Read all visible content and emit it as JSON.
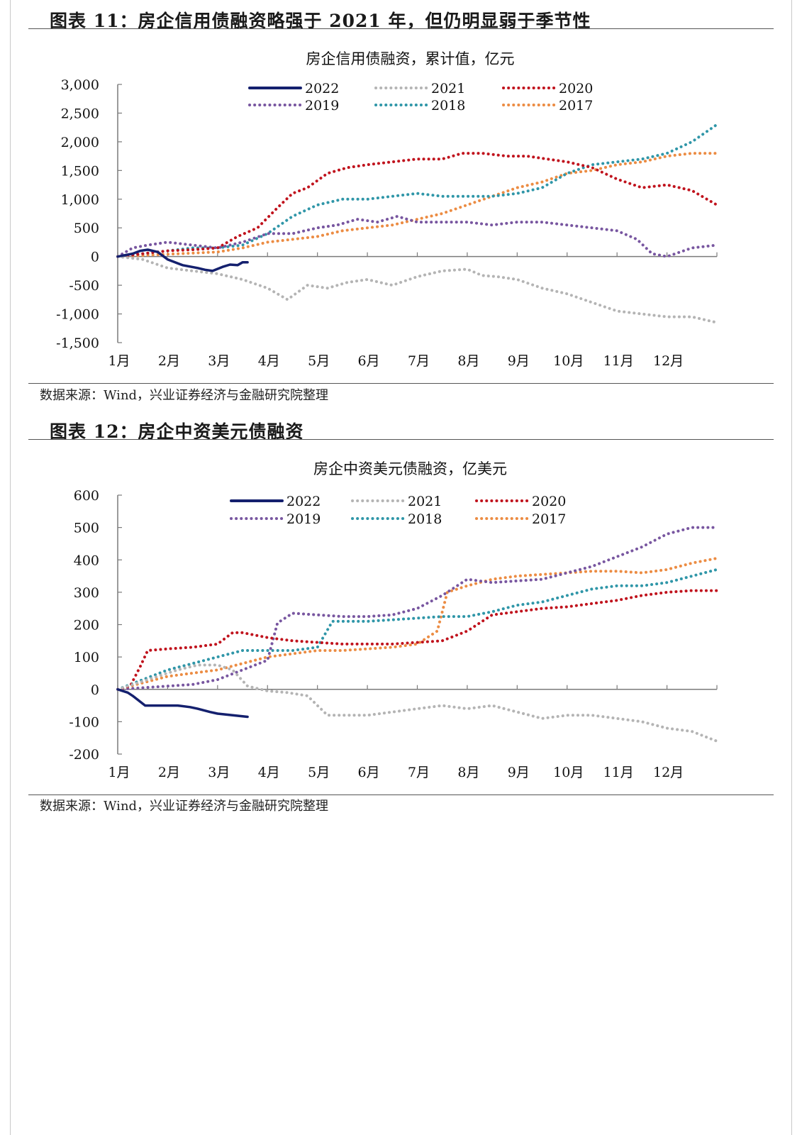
{
  "figures": [
    {
      "caption": "图表 11：房企信用债融资略强于 2021 年，但仍明显弱于季节性",
      "source": "数据来源：Wind，兴业证券经济与金融研究院整理",
      "chart_data": {
        "type": "line",
        "title": "房企信用债融资，累计值，亿元",
        "xlabel": "",
        "ylabel": "",
        "x_tick_labels": [
          "1月",
          "2月",
          "3月",
          "4月",
          "5月",
          "6月",
          "7月",
          "8月",
          "9月",
          "10月",
          "11月",
          "12月"
        ],
        "y_tick_labels": [
          "3,000",
          "2,500",
          "2,000",
          "1,500",
          "1,000",
          "500",
          "0",
          "-500",
          "-1,000",
          "-1,500"
        ],
        "ylim": [
          -1500,
          3000
        ],
        "y_ticks": [
          3000,
          2500,
          2000,
          1500,
          1000,
          500,
          0,
          -500,
          -1000,
          -1500
        ],
        "xlim": [
          0,
          12
        ],
        "grid": false,
        "legend_position": "top",
        "series": [
          {
            "name": "2022",
            "color": "#14206e",
            "style": "solid",
            "x": [
              0,
              0.3,
              0.45,
              0.6,
              0.8,
              1.0,
              1.3,
              1.6,
              1.75,
              1.9,
              2.1,
              2.25,
              2.4,
              2.5,
              2.6
            ],
            "y": [
              0,
              50,
              100,
              120,
              80,
              -50,
              -150,
              -200,
              -230,
              -250,
              -180,
              -140,
              -150,
              -100,
              -100
            ]
          },
          {
            "name": "2021",
            "color": "#b4b4b4",
            "style": "dotted",
            "x": [
              0,
              0.5,
              1.0,
              1.5,
              2.0,
              2.5,
              3.0,
              3.4,
              3.8,
              4.2,
              4.6,
              5.0,
              5.5,
              6.0,
              6.5,
              7.0,
              7.3,
              7.6,
              8.0,
              8.5,
              9.0,
              9.5,
              10.0,
              10.5,
              11.0,
              11.5,
              12.0
            ],
            "y": [
              0,
              -50,
              -200,
              -250,
              -300,
              -400,
              -550,
              -750,
              -500,
              -550,
              -450,
              -400,
              -500,
              -350,
              -250,
              -220,
              -330,
              -350,
              -400,
              -550,
              -650,
              -800,
              -950,
              -1000,
              -1050,
              -1050,
              -1150
            ]
          },
          {
            "name": "2020",
            "color": "#c0131d",
            "style": "dotted",
            "x": [
              0,
              0.5,
              1.0,
              1.5,
              2.0,
              2.4,
              2.8,
              3.2,
              3.5,
              3.8,
              4.2,
              4.6,
              5.0,
              5.5,
              6.0,
              6.5,
              6.9,
              7.3,
              7.8,
              8.2,
              8.6,
              9.0,
              9.5,
              10.0,
              10.5,
              11.0,
              11.5,
              12.0
            ],
            "y": [
              0,
              50,
              100,
              120,
              150,
              350,
              500,
              850,
              1100,
              1200,
              1450,
              1550,
              1600,
              1650,
              1700,
              1700,
              1800,
              1800,
              1750,
              1750,
              1700,
              1650,
              1550,
              1350,
              1200,
              1250,
              1150,
              900
            ]
          },
          {
            "name": "2019",
            "color": "#7856a0",
            "style": "dotted",
            "x": [
              0,
              0.3,
              0.6,
              1.0,
              1.5,
              2.0,
              2.5,
              3.0,
              3.5,
              4.0,
              4.4,
              4.8,
              5.2,
              5.6,
              6.0,
              6.5,
              7.0,
              7.5,
              8.0,
              8.5,
              9.0,
              9.5,
              10.0,
              10.4,
              10.7,
              11.0,
              11.5,
              12.0
            ],
            "y": [
              0,
              150,
              200,
              250,
              200,
              150,
              250,
              400,
              400,
              500,
              550,
              650,
              600,
              700,
              600,
              600,
              600,
              550,
              600,
              600,
              550,
              500,
              450,
              300,
              50,
              0,
              150,
              200
            ]
          },
          {
            "name": "2018",
            "color": "#2f96a8",
            "style": "dotted",
            "x": [
              0,
              0.5,
              1.0,
              1.5,
              2.0,
              2.5,
              3.0,
              3.5,
              4.0,
              4.5,
              5.0,
              5.5,
              6.0,
              6.5,
              7.0,
              7.5,
              8.0,
              8.5,
              9.0,
              9.5,
              10.0,
              10.5,
              11.0,
              11.5,
              12.0
            ],
            "y": [
              0,
              50,
              100,
              150,
              150,
              200,
              400,
              700,
              900,
              1000,
              1000,
              1050,
              1100,
              1050,
              1050,
              1050,
              1100,
              1200,
              1450,
              1600,
              1650,
              1700,
              1800,
              2000,
              2300
            ]
          },
          {
            "name": "2017",
            "color": "#ec8c43",
            "style": "dotted",
            "x": [
              0,
              0.5,
              1.0,
              1.5,
              2.0,
              2.5,
              3.0,
              3.5,
              4.0,
              4.5,
              5.0,
              5.5,
              6.0,
              6.5,
              7.0,
              7.5,
              8.0,
              8.5,
              9.0,
              9.5,
              10.0,
              10.5,
              11.0,
              11.5,
              12.0
            ],
            "y": [
              0,
              20,
              40,
              60,
              80,
              150,
              250,
              300,
              350,
              450,
              500,
              550,
              650,
              750,
              900,
              1050,
              1200,
              1300,
              1450,
              1500,
              1600,
              1650,
              1750,
              1800,
              1800
            ]
          }
        ]
      }
    },
    {
      "caption": "图表 12：房企中资美元债融资",
      "source": "数据来源：Wind，兴业证券经济与金融研究院整理",
      "chart_data": {
        "type": "line",
        "title": "房企中资美元债融资，亿美元",
        "xlabel": "",
        "ylabel": "",
        "x_tick_labels": [
          "1月",
          "2月",
          "3月",
          "4月",
          "5月",
          "6月",
          "7月",
          "8月",
          "9月",
          "10月",
          "11月",
          "12月"
        ],
        "y_tick_labels": [
          "600",
          "500",
          "400",
          "300",
          "200",
          "100",
          "0",
          "-100",
          "-200"
        ],
        "ylim": [
          -200,
          600
        ],
        "y_ticks": [
          600,
          500,
          400,
          300,
          200,
          100,
          0,
          -100,
          -200
        ],
        "xlim": [
          0,
          12
        ],
        "grid": false,
        "legend_position": "top",
        "series": [
          {
            "name": "2022",
            "color": "#14206e",
            "style": "solid",
            "x": [
              0,
              0.2,
              0.3,
              0.55,
              0.9,
              1.2,
              1.45,
              1.6,
              1.85,
              2.0,
              2.3,
              2.6
            ],
            "y": [
              0,
              -10,
              -20,
              -50,
              -50,
              -50,
              -55,
              -60,
              -70,
              -75,
              -80,
              -85
            ]
          },
          {
            "name": "2021",
            "color": "#b4b4b4",
            "style": "dotted",
            "x": [
              0,
              0.4,
              0.8,
              1.2,
              1.6,
              2.0,
              2.3,
              2.6,
              3.0,
              3.4,
              3.8,
              4.2,
              4.6,
              5.0,
              5.5,
              6.0,
              6.5,
              7.0,
              7.5,
              8.0,
              8.5,
              9.0,
              9.5,
              10.0,
              10.5,
              11.0,
              11.5,
              12.0
            ],
            "y": [
              0,
              20,
              40,
              60,
              75,
              75,
              60,
              10,
              -5,
              -10,
              -20,
              -80,
              -80,
              -80,
              -70,
              -60,
              -50,
              -60,
              -50,
              -70,
              -90,
              -80,
              -80,
              -90,
              -100,
              -120,
              -130,
              -160
            ]
          },
          {
            "name": "2020",
            "color": "#c0131d",
            "style": "dotted",
            "x": [
              0,
              0.25,
              0.45,
              0.6,
              1.0,
              1.5,
              2.0,
              2.3,
              2.5,
              3.0,
              3.5,
              4.0,
              4.5,
              5.0,
              5.5,
              6.0,
              6.5,
              7.0,
              7.5,
              8.0,
              8.5,
              9.0,
              9.5,
              10.0,
              10.5,
              11.0,
              11.5,
              12.0
            ],
            "y": [
              0,
              10,
              70,
              120,
              125,
              130,
              140,
              175,
              175,
              160,
              150,
              145,
              140,
              140,
              140,
              145,
              150,
              180,
              230,
              240,
              250,
              255,
              265,
              275,
              290,
              300,
              305,
              305
            ]
          },
          {
            "name": "2019",
            "color": "#7856a0",
            "style": "dotted",
            "x": [
              0,
              0.5,
              1.0,
              1.5,
              2.0,
              2.5,
              3.0,
              3.2,
              3.5,
              4.0,
              4.5,
              5.0,
              5.5,
              6.0,
              6.5,
              7.0,
              7.5,
              8.0,
              8.5,
              9.0,
              9.5,
              10.0,
              10.5,
              11.0,
              11.5,
              12.0
            ],
            "y": [
              0,
              5,
              10,
              15,
              30,
              60,
              90,
              205,
              235,
              230,
              225,
              225,
              230,
              250,
              290,
              340,
              330,
              335,
              340,
              360,
              380,
              410,
              440,
              480,
              500,
              500
            ]
          },
          {
            "name": "2018",
            "color": "#2f96a8",
            "style": "dotted",
            "x": [
              0,
              0.5,
              1.0,
              1.5,
              2.0,
              2.5,
              3.0,
              3.5,
              4.0,
              4.3,
              4.6,
              5.0,
              5.5,
              6.0,
              6.5,
              7.0,
              7.5,
              8.0,
              8.5,
              9.0,
              9.5,
              10.0,
              10.5,
              11.0,
              11.5,
              12.0
            ],
            "y": [
              0,
              30,
              60,
              80,
              100,
              120,
              120,
              120,
              130,
              210,
              210,
              210,
              215,
              220,
              225,
              225,
              240,
              260,
              270,
              290,
              310,
              320,
              320,
              330,
              350,
              370
            ]
          },
          {
            "name": "2017",
            "color": "#ec8c43",
            "style": "dotted",
            "x": [
              0,
              0.5,
              1.0,
              1.5,
              2.0,
              2.5,
              3.0,
              3.5,
              4.0,
              4.5,
              5.0,
              5.5,
              6.0,
              6.4,
              6.6,
              7.0,
              7.5,
              8.0,
              8.5,
              9.0,
              9.5,
              10.0,
              10.5,
              11.0,
              11.5,
              12.0
            ],
            "y": [
              0,
              20,
              40,
              50,
              60,
              80,
              100,
              110,
              120,
              120,
              125,
              130,
              140,
              180,
              300,
              320,
              340,
              350,
              355,
              360,
              365,
              365,
              360,
              370,
              390,
              405
            ]
          }
        ]
      }
    }
  ]
}
